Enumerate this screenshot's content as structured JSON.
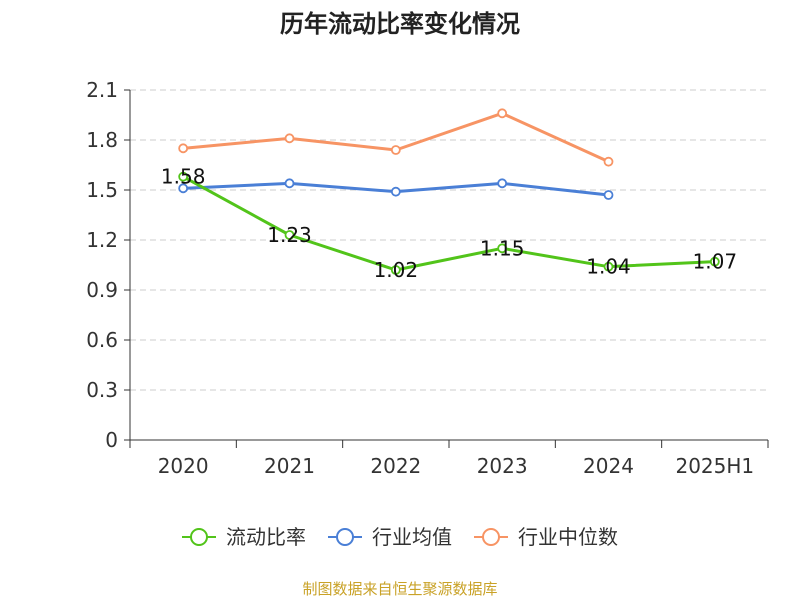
{
  "chart_data": {
    "type": "line",
    "title": "历年流动比率变化情况",
    "categories": [
      "2020",
      "2021",
      "2022",
      "2023",
      "2024",
      "2025H1"
    ],
    "ylim": [
      0,
      2.1
    ],
    "yticks": [
      "0",
      "0.3",
      "0.6",
      "0.9",
      "1.2",
      "1.5",
      "1.8",
      "2.1"
    ],
    "grid": true,
    "legend_position": "bottom",
    "series": [
      {
        "name": "流动比率",
        "color": "#52c41a",
        "values": [
          1.58,
          1.23,
          1.02,
          1.15,
          1.04,
          1.07
        ],
        "labels": [
          "1.58",
          "1.23",
          "1.02",
          "1.15",
          "1.04",
          "1.07"
        ]
      },
      {
        "name": "行业均值",
        "color": "#4a7fd6",
        "values": [
          1.51,
          1.54,
          1.49,
          1.54,
          1.47,
          null
        ]
      },
      {
        "name": "行业中位数",
        "color": "#f79464",
        "values": [
          1.75,
          1.81,
          1.74,
          1.96,
          1.67,
          null
        ]
      }
    ]
  },
  "source": {
    "text": "制图数据来自恒生聚源数据库",
    "color": "#c9a227"
  }
}
